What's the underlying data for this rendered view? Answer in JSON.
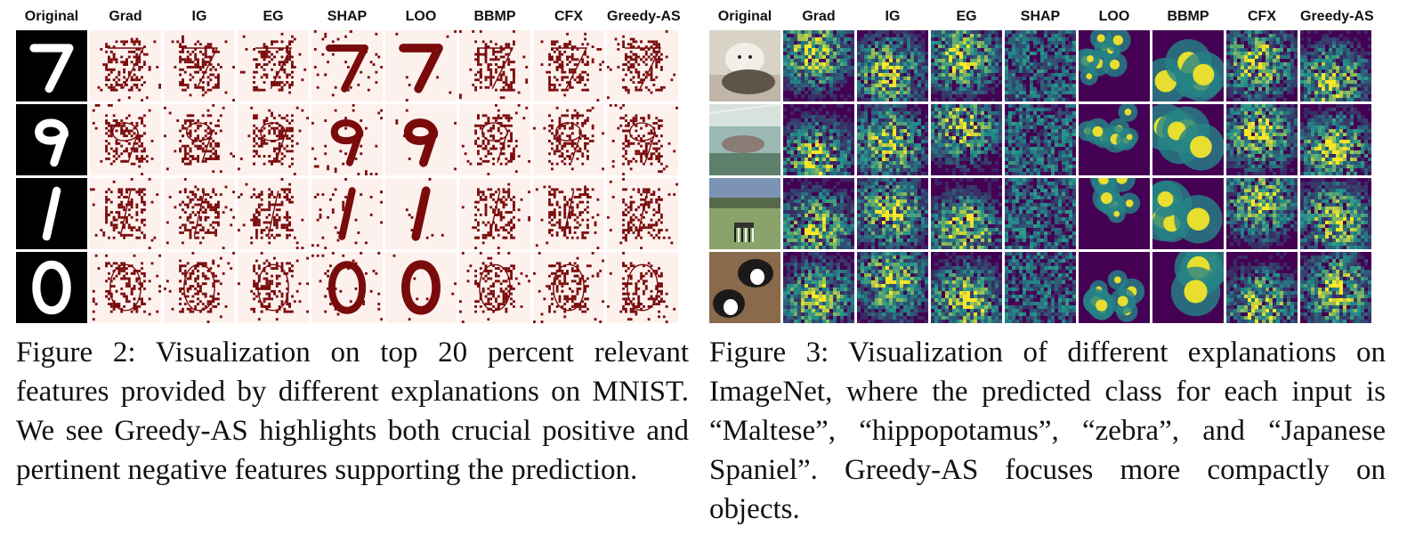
{
  "figure_left": {
    "headers": [
      "Original",
      "Grad",
      "IG",
      "EG",
      "SHAP",
      "LOO",
      "BBMP",
      "CFX",
      "Greedy-AS"
    ],
    "digits": [
      "7",
      "9",
      "1",
      "0"
    ],
    "colors": {
      "background": "#fdf1ee",
      "feature": "#7a0b0b",
      "original_bg": "#000000",
      "original_fg": "#ffffff"
    },
    "caption": "Figure 2: Visualization on top 20 percent relevant features provided by different explanations on MNIST. We see Greedy-AS highlights both crucial positive and pertinent negative features supporting the prediction."
  },
  "figure_right": {
    "headers": [
      "Original",
      "Grad",
      "IG",
      "EG",
      "SHAP",
      "LOO",
      "BBMP",
      "CFX",
      "Greedy-AS"
    ],
    "images": [
      "dog-and-cat-photo",
      "hippopotamus-photo",
      "zebra-photo",
      "spaniel-dogs-photo"
    ],
    "colors": {
      "low": "#440154",
      "mid": "#21918c",
      "high": "#fde725"
    },
    "caption": "Figure 3: Visualization of different explanations on ImageNet, where the predicted class for each input is “Maltese”, “hippopotamus”, “zebra”, and “Japanese Spaniel”. Greedy-AS focuses more compactly on objects."
  }
}
